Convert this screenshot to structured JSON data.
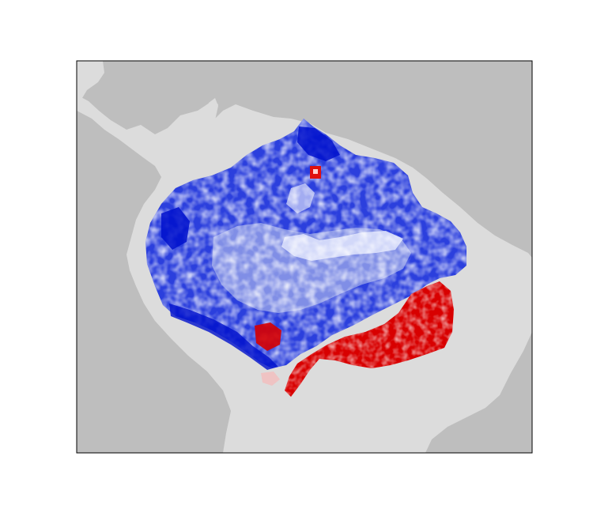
{
  "map": {
    "colors": {
      "ocean": "#bebebe",
      "land": "#dcdcdc",
      "frame": "#000000",
      "positive": "#0000cc",
      "neutral": "#ffffff",
      "negative": "#cc0000"
    },
    "legend": null,
    "title": null
  }
}
